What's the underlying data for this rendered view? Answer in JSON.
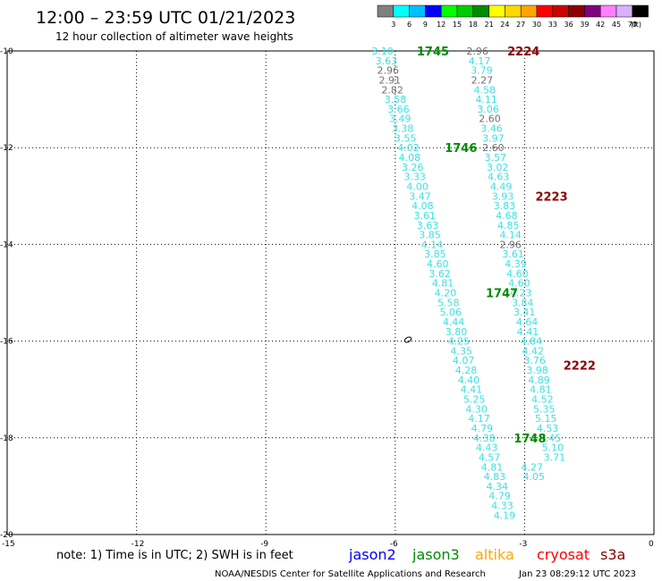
{
  "header": {
    "title": "12:00 – 23:59 UTC 01/21/2023",
    "subtitle": "12 hour collection of altimeter wave heights"
  },
  "colorbar": {
    "colors": [
      "#808080",
      "#00ffff",
      "#00bfff",
      "#0000ff",
      "#00ff00",
      "#00cd00",
      "#008b00",
      "#ffff00",
      "#ffd700",
      "#ffa500",
      "#ff0000",
      "#cd0000",
      "#8b0000",
      "#800080",
      "#ff80ff",
      "#d8b0ff",
      "#000000"
    ],
    "labels": [
      "3",
      "6",
      "9",
      "12",
      "15",
      "18",
      "21",
      "24",
      "27",
      "30",
      "33",
      "36",
      "39",
      "42",
      "45",
      "70"
    ],
    "unit": "(ft)"
  },
  "legend": {
    "note": "note: 1) Time is in UTC; 2) SWH is in feet",
    "satellites": [
      {
        "name": "jason2",
        "color": "#0000ff"
      },
      {
        "name": "jason3",
        "color": "#008b00"
      },
      {
        "name": "altika",
        "color": "#ffa500"
      },
      {
        "name": "cryosat",
        "color": "#ff0000"
      },
      {
        "name": "s3a",
        "color": "#8b0000"
      }
    ]
  },
  "footer": {
    "credit": "NOAA/NESDIS Center for Satellite Applications and Research",
    "timestamp": "Jan 23 08:29:12 UTC 2023"
  },
  "chart_data": {
    "type": "scatter",
    "title": "12:00 – 23:59 UTC 01/21/2023",
    "subtitle": "12 hour collection of altimeter wave heights",
    "xlim": [
      -15,
      0
    ],
    "ylim": [
      -20,
      -10
    ],
    "xticks": [
      -15,
      -12,
      -9,
      -6,
      -3,
      0
    ],
    "yticks": [
      -20,
      -18,
      -16,
      -14,
      -12,
      -10
    ],
    "grid": true,
    "unit": "ft",
    "tracks": [
      {
        "satellite": "jason3",
        "color": "#008b00",
        "points": [
          {
            "x": -6.55,
            "y": -10.0,
            "v": "3.10",
            "gray": false
          },
          {
            "x": -6.46,
            "y": -10.2,
            "v": "3.63",
            "gray": false
          },
          {
            "x": -6.42,
            "y": -10.4,
            "v": "2.96",
            "gray": true
          },
          {
            "x": -6.38,
            "y": -10.6,
            "v": "2.91",
            "gray": true
          },
          {
            "x": -6.32,
            "y": -10.8,
            "v": "2.82",
            "gray": true
          },
          {
            "x": -6.25,
            "y": -11.0,
            "v": "3.58",
            "gray": false
          },
          {
            "x": -6.18,
            "y": -11.2,
            "v": "3.66",
            "gray": false
          },
          {
            "x": -6.14,
            "y": -11.4,
            "v": "3.49",
            "gray": false
          },
          {
            "x": -6.08,
            "y": -11.6,
            "v": "3.38",
            "gray": false
          },
          {
            "x": -6.02,
            "y": -11.8,
            "v": "3.55",
            "gray": false
          },
          {
            "x": -5.95,
            "y": -12.0,
            "v": "4.02",
            "gray": false
          },
          {
            "x": -5.92,
            "y": -12.2,
            "v": "4.08",
            "gray": false
          },
          {
            "x": -5.85,
            "y": -12.4,
            "v": "3.26",
            "gray": false
          },
          {
            "x": -5.8,
            "y": -12.6,
            "v": "3.33",
            "gray": false
          },
          {
            "x": -5.74,
            "y": -12.8,
            "v": "4.00",
            "gray": false
          },
          {
            "x": -5.68,
            "y": -13.0,
            "v": "3.47",
            "gray": false
          },
          {
            "x": -5.62,
            "y": -13.2,
            "v": "4.08",
            "gray": false
          },
          {
            "x": -5.57,
            "y": -13.4,
            "v": "3.61",
            "gray": false
          },
          {
            "x": -5.5,
            "y": -13.6,
            "v": "3.63",
            "gray": false
          },
          {
            "x": -5.45,
            "y": -13.8,
            "v": "3.85",
            "gray": false
          },
          {
            "x": -5.4,
            "y": -14.0,
            "v": "4.14",
            "gray": false
          },
          {
            "x": -5.33,
            "y": -14.2,
            "v": "3.85",
            "gray": false
          },
          {
            "x": -5.27,
            "y": -14.4,
            "v": "4.60",
            "gray": false
          },
          {
            "x": -5.22,
            "y": -14.6,
            "v": "3.62",
            "gray": false
          },
          {
            "x": -5.15,
            "y": -14.8,
            "v": "4.81",
            "gray": false
          },
          {
            "x": -5.09,
            "y": -15.0,
            "v": "4.20",
            "gray": false
          },
          {
            "x": -5.02,
            "y": -15.2,
            "v": "5.58",
            "gray": false
          },
          {
            "x": -4.97,
            "y": -15.4,
            "v": "5.06",
            "gray": false
          },
          {
            "x": -4.9,
            "y": -15.6,
            "v": "4.44",
            "gray": false
          },
          {
            "x": -4.84,
            "y": -15.8,
            "v": "3.80",
            "gray": false
          },
          {
            "x": -4.78,
            "y": -16.0,
            "v": "4.25",
            "gray": false
          },
          {
            "x": -4.72,
            "y": -16.2,
            "v": "4.35",
            "gray": false
          },
          {
            "x": -4.67,
            "y": -16.4,
            "v": "4.07",
            "gray": false
          },
          {
            "x": -4.61,
            "y": -16.6,
            "v": "4.28",
            "gray": false
          },
          {
            "x": -4.55,
            "y": -16.8,
            "v": "4.40",
            "gray": false
          },
          {
            "x": -4.49,
            "y": -17.0,
            "v": "4.41",
            "gray": false
          },
          {
            "x": -4.42,
            "y": -17.2,
            "v": "5.25",
            "gray": false
          },
          {
            "x": -4.37,
            "y": -17.4,
            "v": "4.30",
            "gray": false
          },
          {
            "x": -4.31,
            "y": -17.6,
            "v": "4.17",
            "gray": false
          },
          {
            "x": -4.24,
            "y": -17.8,
            "v": "4.79",
            "gray": false
          },
          {
            "x": -4.19,
            "y": -18.0,
            "v": "4.38",
            "gray": false
          },
          {
            "x": -4.13,
            "y": -18.2,
            "v": "4.43",
            "gray": false
          },
          {
            "x": -4.07,
            "y": -18.4,
            "v": "4.57",
            "gray": false
          },
          {
            "x": -4.01,
            "y": -18.6,
            "v": "4.81",
            "gray": false
          },
          {
            "x": -3.95,
            "y": -18.8,
            "v": "4.83",
            "gray": false
          },
          {
            "x": -3.89,
            "y": -19.0,
            "v": "4.34",
            "gray": false
          },
          {
            "x": -3.83,
            "y": -19.2,
            "v": "4.79",
            "gray": false
          },
          {
            "x": -3.77,
            "y": -19.4,
            "v": "4.33",
            "gray": false
          },
          {
            "x": -3.72,
            "y": -19.6,
            "v": "4.19",
            "gray": false
          }
        ],
        "pass_labels": [
          {
            "x": -5.5,
            "y": -10.0,
            "text": "1745"
          },
          {
            "x": -4.85,
            "y": -12.0,
            "text": "1746"
          },
          {
            "x": -3.9,
            "y": -15.0,
            "text": "1747"
          },
          {
            "x": -3.25,
            "y": -18.0,
            "text": "1748"
          }
        ]
      },
      {
        "satellite": "s3a",
        "color": "#8b0000",
        "points": [
          {
            "x": -4.35,
            "y": -10.0,
            "v": "2.96",
            "gray": true
          },
          {
            "x": -4.3,
            "y": -10.2,
            "v": "4.17",
            "gray": false
          },
          {
            "x": -4.25,
            "y": -10.4,
            "v": "3.79",
            "gray": false
          },
          {
            "x": -4.24,
            "y": -10.6,
            "v": "2.27",
            "gray": true
          },
          {
            "x": -4.18,
            "y": -10.8,
            "v": "4.58",
            "gray": false
          },
          {
            "x": -4.14,
            "y": -11.0,
            "v": "4.11",
            "gray": false
          },
          {
            "x": -4.1,
            "y": -11.2,
            "v": "3.06",
            "gray": false
          },
          {
            "x": -4.06,
            "y": -11.4,
            "v": "2.60",
            "gray": true
          },
          {
            "x": -4.02,
            "y": -11.6,
            "v": "3.46",
            "gray": false
          },
          {
            "x": -3.98,
            "y": -11.8,
            "v": "3.97",
            "gray": false
          },
          {
            "x": -3.98,
            "y": -12.0,
            "v": "2.60",
            "gray": true
          },
          {
            "x": -3.93,
            "y": -12.2,
            "v": "3.57",
            "gray": false
          },
          {
            "x": -3.88,
            "y": -12.4,
            "v": "3.02",
            "gray": false
          },
          {
            "x": -3.86,
            "y": -12.6,
            "v": "4.63",
            "gray": false
          },
          {
            "x": -3.8,
            "y": -12.8,
            "v": "4.49",
            "gray": false
          },
          {
            "x": -3.76,
            "y": -13.0,
            "v": "3.93",
            "gray": false
          },
          {
            "x": -3.72,
            "y": -13.2,
            "v": "3.83",
            "gray": false
          },
          {
            "x": -3.67,
            "y": -13.4,
            "v": "4.68",
            "gray": false
          },
          {
            "x": -3.63,
            "y": -13.6,
            "v": "4.85",
            "gray": false
          },
          {
            "x": -3.58,
            "y": -13.8,
            "v": "4.14",
            "gray": false
          },
          {
            "x": -3.58,
            "y": -14.0,
            "v": "2.96",
            "gray": true
          },
          {
            "x": -3.52,
            "y": -14.2,
            "v": "3.61",
            "gray": false
          },
          {
            "x": -3.46,
            "y": -14.4,
            "v": "4.39",
            "gray": false
          },
          {
            "x": -3.42,
            "y": -14.6,
            "v": "4.60",
            "gray": false
          },
          {
            "x": -3.38,
            "y": -14.8,
            "v": "4.60",
            "gray": false
          },
          {
            "x": -3.34,
            "y": -15.0,
            "v": "4.23",
            "gray": false
          },
          {
            "x": -3.3,
            "y": -15.2,
            "v": "3.84",
            "gray": false
          },
          {
            "x": -3.26,
            "y": -15.4,
            "v": "3.41",
            "gray": false
          },
          {
            "x": -3.2,
            "y": -15.6,
            "v": "4.64",
            "gray": false
          },
          {
            "x": -3.18,
            "y": -15.8,
            "v": "4.41",
            "gray": false
          },
          {
            "x": -3.1,
            "y": -16.0,
            "v": "4.84",
            "gray": false
          },
          {
            "x": -3.06,
            "y": -16.2,
            "v": "4.42",
            "gray": false
          },
          {
            "x": -3.02,
            "y": -16.4,
            "v": "3.76",
            "gray": false
          },
          {
            "x": -2.96,
            "y": -16.6,
            "v": "3.98",
            "gray": false
          },
          {
            "x": -2.92,
            "y": -16.8,
            "v": "4.89",
            "gray": false
          },
          {
            "x": -2.88,
            "y": -17.0,
            "v": "4.81",
            "gray": false
          },
          {
            "x": -2.84,
            "y": -17.2,
            "v": "4.52",
            "gray": false
          },
          {
            "x": -2.8,
            "y": -17.4,
            "v": "5.35",
            "gray": false
          },
          {
            "x": -2.76,
            "y": -17.6,
            "v": "5.15",
            "gray": false
          },
          {
            "x": -2.72,
            "y": -17.8,
            "v": "4.53",
            "gray": false
          },
          {
            "x": -2.66,
            "y": -18.0,
            "v": "4.45",
            "gray": false
          },
          {
            "x": -2.6,
            "y": -18.2,
            "v": "5.10",
            "gray": false
          },
          {
            "x": -2.56,
            "y": -18.4,
            "v": "3.71",
            "gray": false
          },
          {
            "x": -3.08,
            "y": -18.6,
            "v": "4.27",
            "gray": false
          },
          {
            "x": -3.04,
            "y": -18.8,
            "v": "4.05",
            "gray": false
          }
        ],
        "pass_labels": [
          {
            "x": -3.4,
            "y": -10.0,
            "text": "2224"
          },
          {
            "x": -2.75,
            "y": -13.0,
            "text": "2223"
          },
          {
            "x": -2.1,
            "y": -16.5,
            "text": "2222"
          }
        ]
      }
    ],
    "legend_position": "bottom"
  }
}
